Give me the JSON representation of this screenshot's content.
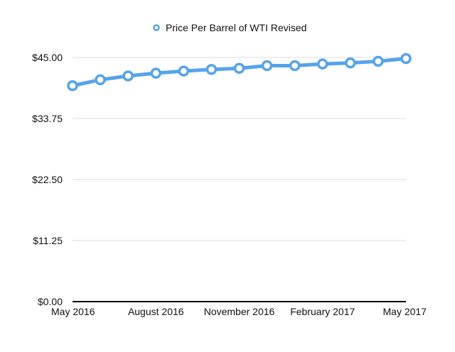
{
  "chart_data": {
    "type": "line",
    "title": "",
    "xlabel": "",
    "ylabel": "",
    "x": [
      "May 2016",
      "Jun 2016",
      "Jul 2016",
      "Aug 2016",
      "Sep 2016",
      "Oct 2016",
      "Nov 2016",
      "Dec 2016",
      "Jan 2017",
      "Feb 2017",
      "Mar 2017",
      "Apr 2017",
      "May 2017"
    ],
    "x_tick_labels": [
      "May 2016",
      "August 2016",
      "November 2016",
      "February 2017",
      "May 2017"
    ],
    "x_tick_indices": [
      0,
      3,
      6,
      9,
      12
    ],
    "y_tick_labels": [
      "$0.00",
      "$11.25",
      "$22.50",
      "$33.75",
      "$45.00"
    ],
    "y_ticks": [
      0,
      11.25,
      22.5,
      33.75,
      45
    ],
    "ylim": [
      0,
      45
    ],
    "grid": true,
    "legend_position": "top-center",
    "series": [
      {
        "name": "Price Per Barrel of WTI Revised",
        "color": "#56a3ea",
        "values": [
          39.8,
          40.9,
          41.6,
          42.1,
          42.5,
          42.8,
          43.0,
          43.5,
          43.5,
          43.8,
          44.0,
          44.3,
          44.8
        ]
      }
    ]
  }
}
